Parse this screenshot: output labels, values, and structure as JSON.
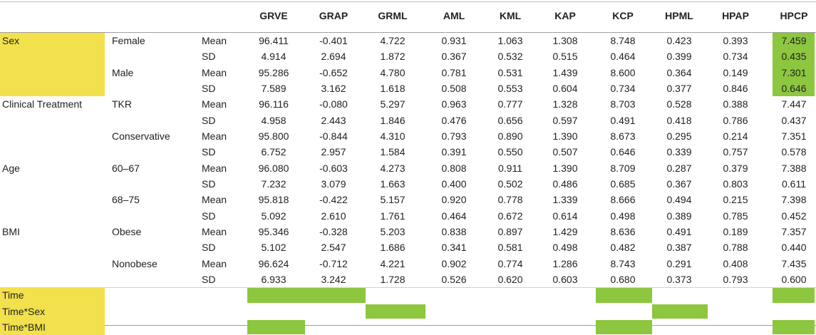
{
  "columns": [
    "GRVE",
    "GRAP",
    "GRML",
    "AML",
    "KML",
    "KAP",
    "KCP",
    "HPML",
    "HPAP",
    "HPCP"
  ],
  "groups": [
    {
      "factor": "Sex",
      "levels": [
        {
          "name": "Female",
          "mean": [
            "96.411",
            "-0.401",
            "4.722",
            "0.931",
            "1.063",
            "1.308",
            "8.748",
            "0.423",
            "0.393",
            "7.459"
          ],
          "sd": [
            "4.914",
            "2.694",
            "1.872",
            "0.367",
            "0.532",
            "0.515",
            "0.464",
            "0.399",
            "0.734",
            "0.435"
          ]
        },
        {
          "name": "Male",
          "mean": [
            "95.286",
            "-0.652",
            "4.780",
            "0.781",
            "0.531",
            "1.439",
            "8.600",
            "0.364",
            "0.149",
            "7.301"
          ],
          "sd": [
            "7.589",
            "3.162",
            "1.618",
            "0.508",
            "0.553",
            "0.604",
            "0.734",
            "0.377",
            "0.846",
            "0.646"
          ]
        }
      ]
    },
    {
      "factor": "Clinical Treatment",
      "levels": [
        {
          "name": "TKR",
          "mean": [
            "96.116",
            "-0.080",
            "5.297",
            "0.963",
            "0.777",
            "1.328",
            "8.703",
            "0.528",
            "0.388",
            "7.447"
          ],
          "sd": [
            "4.958",
            "2.443",
            "1.846",
            "0.476",
            "0.656",
            "0.597",
            "0.491",
            "0.418",
            "0.786",
            "0.437"
          ]
        },
        {
          "name": "Conservative",
          "mean": [
            "95.800",
            "-0.844",
            "4.310",
            "0.793",
            "0.890",
            "1.390",
            "8.673",
            "0.295",
            "0.214",
            "7.351"
          ],
          "sd": [
            "6.752",
            "2.957",
            "1.584",
            "0.391",
            "0.550",
            "0.507",
            "0.646",
            "0.339",
            "0.757",
            "0.578"
          ]
        }
      ]
    },
    {
      "factor": "Age",
      "levels": [
        {
          "name": "60–67",
          "mean": [
            "96.080",
            "-0.603",
            "4.273",
            "0.808",
            "0.911",
            "1.390",
            "8.709",
            "0.287",
            "0.379",
            "7.388"
          ],
          "sd": [
            "7.232",
            "3.079",
            "1.663",
            "0.400",
            "0.502",
            "0.486",
            "0.685",
            "0.367",
            "0.803",
            "0.611"
          ]
        },
        {
          "name": "68–75",
          "mean": [
            "95.818",
            "-0.422",
            "5.157",
            "0.920",
            "0.778",
            "1.339",
            "8.666",
            "0.494",
            "0.215",
            "7.398"
          ],
          "sd": [
            "5.092",
            "2.610",
            "1.761",
            "0.464",
            "0.672",
            "0.614",
            "0.498",
            "0.389",
            "0.785",
            "0.452"
          ]
        }
      ]
    },
    {
      "factor": "BMI",
      "levels": [
        {
          "name": "Obese",
          "mean": [
            "95.346",
            "-0.328",
            "5.203",
            "0.838",
            "0.897",
            "1.429",
            "8.636",
            "0.491",
            "0.189",
            "7.357"
          ],
          "sd": [
            "5.102",
            "2.547",
            "1.686",
            "0.341",
            "0.581",
            "0.498",
            "0.482",
            "0.387",
            "0.788",
            "0.440"
          ]
        },
        {
          "name": "Nonobese",
          "mean": [
            "96.624",
            "-0.712",
            "4.221",
            "0.902",
            "0.774",
            "1.286",
            "8.743",
            "0.291",
            "0.408",
            "7.435"
          ],
          "sd": [
            "6.933",
            "3.242",
            "1.728",
            "0.526",
            "0.620",
            "0.603",
            "0.680",
            "0.373",
            "0.793",
            "0.600"
          ]
        }
      ]
    }
  ],
  "stat_labels": {
    "mean": "Mean",
    "sd": "SD"
  },
  "effects": [
    {
      "name": "Time",
      "significant": [
        "GRVE",
        "GRAP",
        "KCP",
        "HPCP"
      ]
    },
    {
      "name": "Time*Sex",
      "significant": [
        "GRML",
        "HPML"
      ]
    },
    {
      "name": "Time*BMI",
      "significant": [
        "GRVE",
        "KCP",
        "HPCP"
      ]
    }
  ],
  "highlight_colors": {
    "factor": "#f2e14c",
    "significant": "#8dc63f"
  },
  "highlighted_factor": "Sex",
  "highlighted_column_cells": {
    "factor": "Sex",
    "column": "HPCP"
  }
}
